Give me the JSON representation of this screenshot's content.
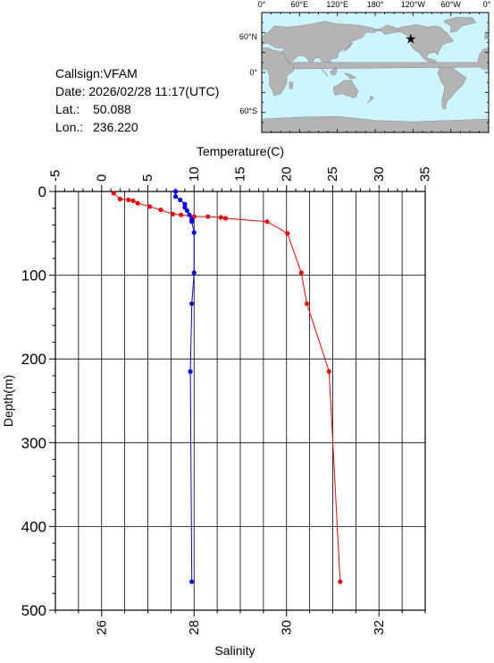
{
  "info": {
    "callsign": "Callsign:VFAM",
    "date": "Date:  2026/02/28 11:17(UTC)",
    "lat_label": "Lat.:",
    "lat_value": "50.088",
    "lon_label": "Lon.:",
    "lon_value": "236.220"
  },
  "map": {
    "lon_ticks": [
      "0°",
      "60°E",
      "120°E",
      "180°",
      "120°W",
      "60°W",
      "0°"
    ],
    "lat_ticks": [
      "60°N",
      "0°",
      "60°S"
    ],
    "station_lat": 50.088,
    "station_lon": 236.22,
    "ocean_color": "#ccf5ff",
    "land_color": "#b4b4b4",
    "marker_color": "#ff0000"
  },
  "chart_data": {
    "type": "line",
    "yaxis": {
      "label": "Depth(m)",
      "range": [
        0,
        500
      ],
      "ticks": [
        0,
        100,
        200,
        300,
        400,
        500
      ],
      "inverted": true
    },
    "x_top": {
      "label": "Temperature(C)",
      "range": [
        -5,
        35
      ],
      "ticks": [
        -5,
        0,
        5,
        10,
        15,
        20,
        25,
        30,
        35
      ]
    },
    "x_bottom": {
      "label": "Salinity",
      "range": [
        25,
        33
      ],
      "ticks": [
        26,
        28,
        30,
        32
      ]
    },
    "grid": true,
    "series": [
      {
        "axis": "top",
        "color": "#ff0000",
        "points": [
          [
            1.3,
            2
          ],
          [
            2.0,
            9
          ],
          [
            2.9,
            10
          ],
          [
            3.4,
            11
          ],
          [
            3.9,
            14
          ],
          [
            5.2,
            18
          ],
          [
            6.4,
            22
          ],
          [
            7.7,
            27
          ],
          [
            8.6,
            28
          ],
          [
            10.0,
            30
          ],
          [
            11.5,
            30
          ],
          [
            12.9,
            31
          ],
          [
            13.4,
            32
          ],
          [
            17.9,
            36
          ],
          [
            20.1,
            50
          ],
          [
            21.6,
            97
          ],
          [
            22.2,
            134
          ],
          [
            24.6,
            215
          ],
          [
            25.8,
            466
          ]
        ]
      },
      {
        "axis": "bottom",
        "color": "#0000ff",
        "points": [
          [
            27.6,
            0
          ],
          [
            27.6,
            6
          ],
          [
            27.7,
            10
          ],
          [
            27.8,
            15
          ],
          [
            27.8,
            19
          ],
          [
            27.85,
            23
          ],
          [
            27.9,
            28
          ],
          [
            27.95,
            33
          ],
          [
            27.95,
            36
          ],
          [
            28.0,
            49
          ],
          [
            28.0,
            97
          ],
          [
            27.95,
            134
          ],
          [
            27.92,
            215
          ],
          [
            27.95,
            466
          ]
        ]
      }
    ]
  }
}
